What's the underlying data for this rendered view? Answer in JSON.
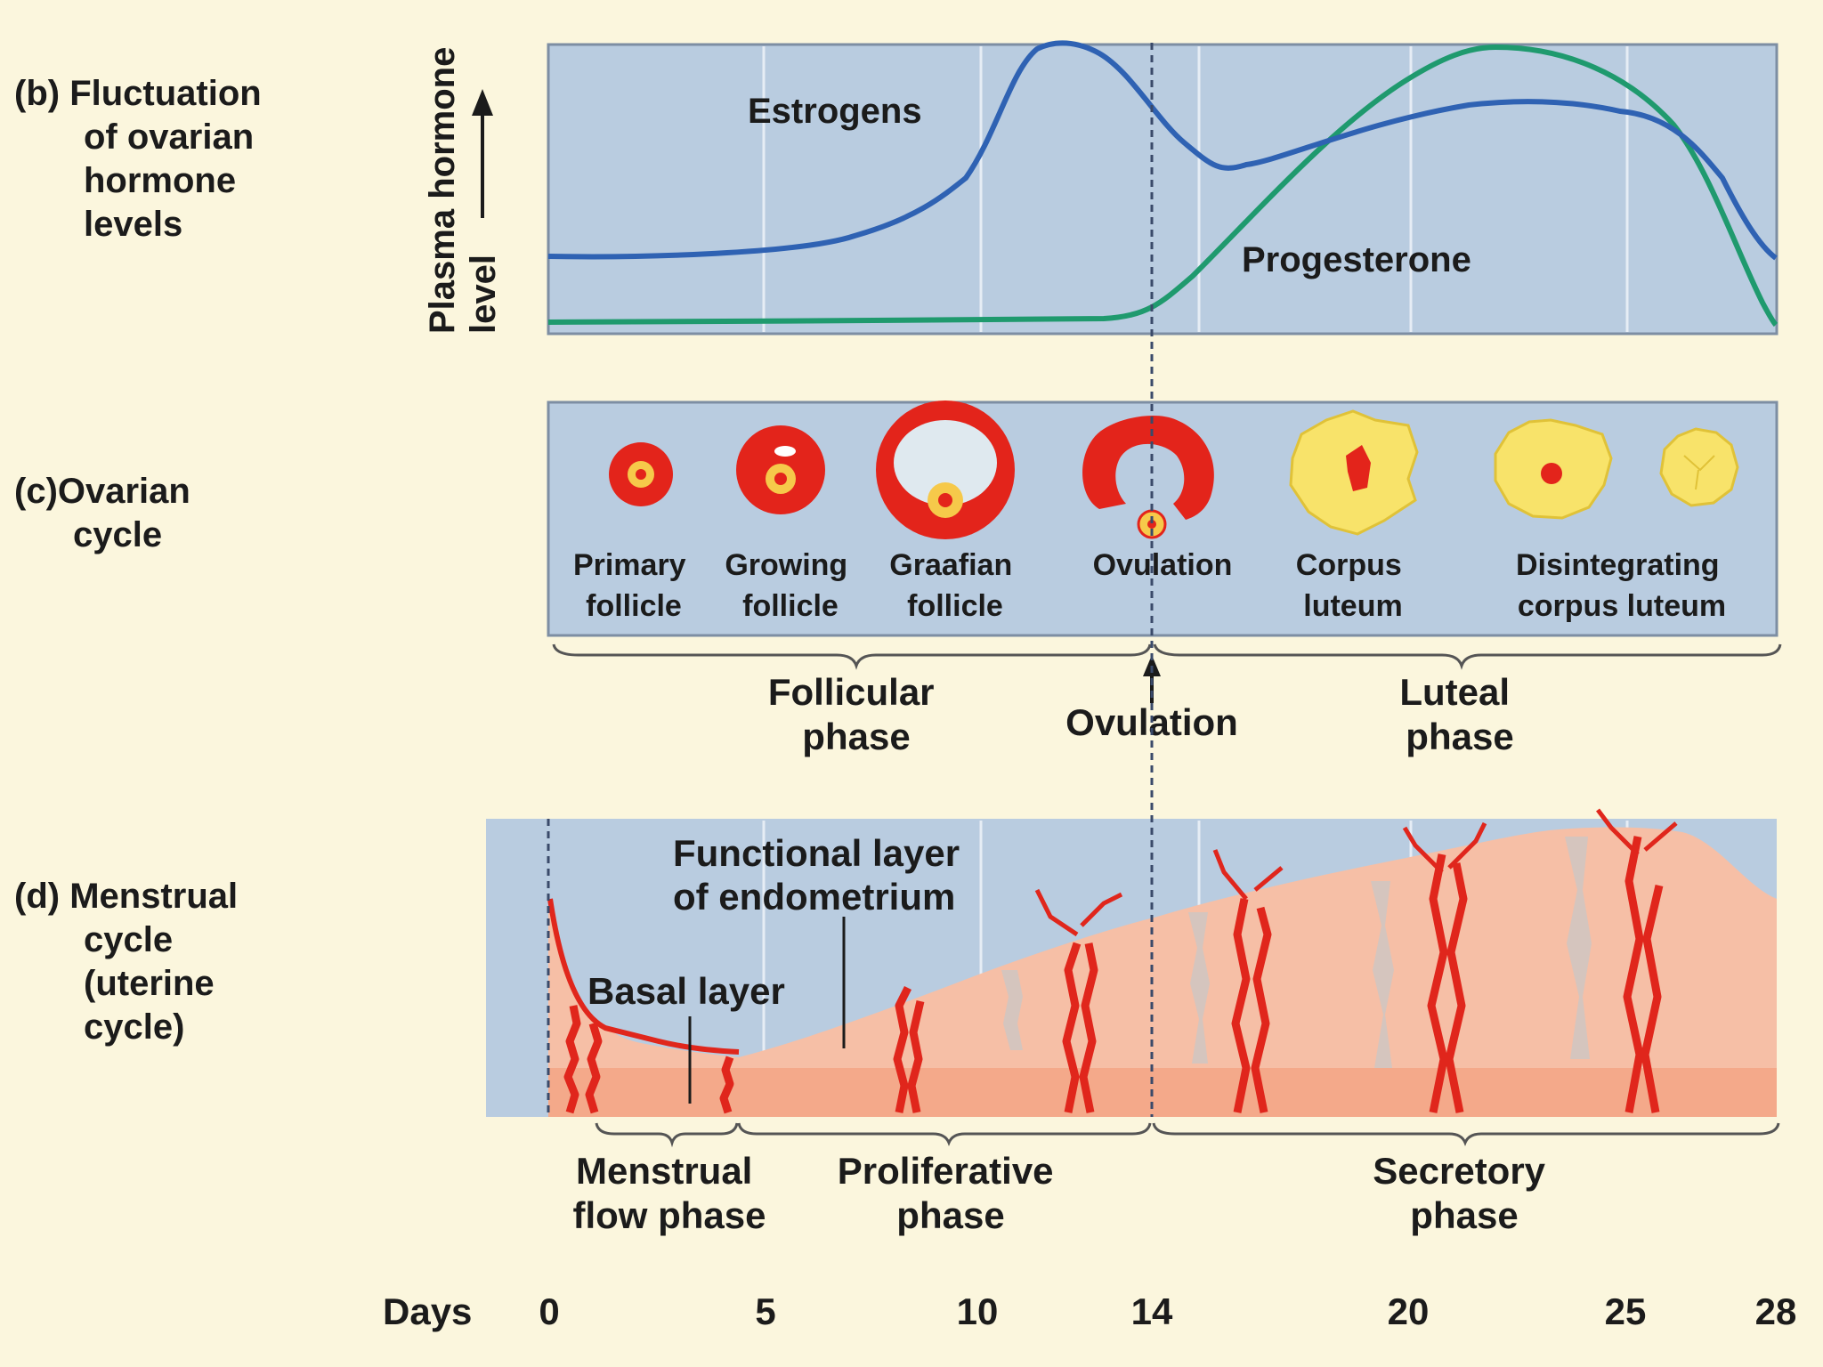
{
  "section_b": {
    "label": [
      "(b) Fluctuation",
      "of ovarian",
      "hormone",
      "levels"
    ],
    "y_axis": [
      "Plasma hormone",
      "level"
    ],
    "curves": [
      {
        "name": "Estrogens",
        "color": "#2f62b3"
      },
      {
        "name": "Progesterone",
        "color": "#1f9a6e"
      }
    ],
    "colors": {
      "panel": "#b9cce0",
      "grid": "#e6edf5"
    }
  },
  "section_c": {
    "label": [
      "(c)Ovarian",
      "cycle"
    ],
    "stages": [
      {
        "name": [
          "Primary",
          "follicle"
        ],
        "icon": "primary-follicle-icon"
      },
      {
        "name": [
          "Growing",
          "follicle"
        ],
        "icon": "growing-follicle-icon"
      },
      {
        "name": [
          "Graafian",
          "follicle"
        ],
        "icon": "graafian-follicle-icon"
      },
      {
        "name": [
          "Ovulation"
        ],
        "icon": "ovulation-icon"
      },
      {
        "name": [
          "Corpus",
          "luteum"
        ],
        "icon": "corpus-luteum-icon"
      },
      {
        "name": [
          "Disintegrating",
          "corpus luteum"
        ],
        "icon": "disintegrating-corpus-luteum-icon"
      }
    ],
    "phases": {
      "follicular": [
        "Follicular",
        "phase"
      ],
      "ovulation": "Ovulation",
      "luteal": [
        "Luteal",
        "phase"
      ]
    }
  },
  "section_d": {
    "label": [
      "(d) Menstrual",
      "cycle",
      "(uterine",
      "cycle)"
    ],
    "annotations": {
      "functional": [
        "Functional layer",
        "of endometrium"
      ],
      "basal": "Basal layer"
    },
    "phases": {
      "menstrual": [
        "Menstrual",
        "flow phase"
      ],
      "proliferative": [
        "Proliferative",
        "phase"
      ],
      "secretory": [
        "Secretory",
        "phase"
      ]
    },
    "colors": {
      "tissue": "#f6bfa6",
      "basal": "#f4a98a",
      "vessel": "#e0261c"
    }
  },
  "days": {
    "label": "Days",
    "ticks": [
      "0",
      "5",
      "10",
      "14",
      "20",
      "25",
      "28"
    ]
  }
}
